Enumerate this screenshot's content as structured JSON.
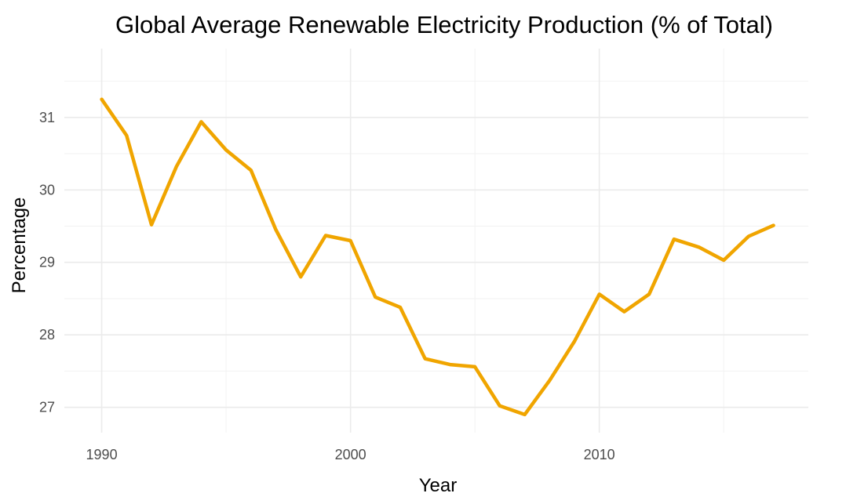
{
  "chart_data": {
    "type": "line",
    "title": "Global Average Renewable Electricity Production (% of Total)",
    "xlabel": "Year",
    "ylabel": "Percentage",
    "x_ticks": [
      1990,
      2000,
      2010
    ],
    "y_ticks": [
      27,
      28,
      29,
      30,
      31
    ],
    "xlim": [
      1988.5,
      2018.4
    ],
    "ylim": [
      26.65,
      31.95
    ],
    "grid": true,
    "legend": "none",
    "line_color": "#f0a500",
    "series": [
      {
        "x": [
          1990,
          1991,
          1992,
          1993,
          1994,
          1995,
          1996,
          1997,
          1998,
          1999,
          2000,
          2001,
          2002,
          2003,
          2004,
          2005,
          2006,
          2007,
          2008,
          2009,
          2010,
          2011,
          2012,
          2013,
          2014,
          2015,
          2016,
          2017
        ],
        "values": [
          31.25,
          30.75,
          29.52,
          30.32,
          30.94,
          30.55,
          30.27,
          29.45,
          28.8,
          29.37,
          29.3,
          28.52,
          28.38,
          27.67,
          27.59,
          27.56,
          27.02,
          26.9,
          27.37,
          27.91,
          28.56,
          28.32,
          28.56,
          29.32,
          29.21,
          29.03,
          29.36,
          29.51
        ]
      }
    ]
  }
}
